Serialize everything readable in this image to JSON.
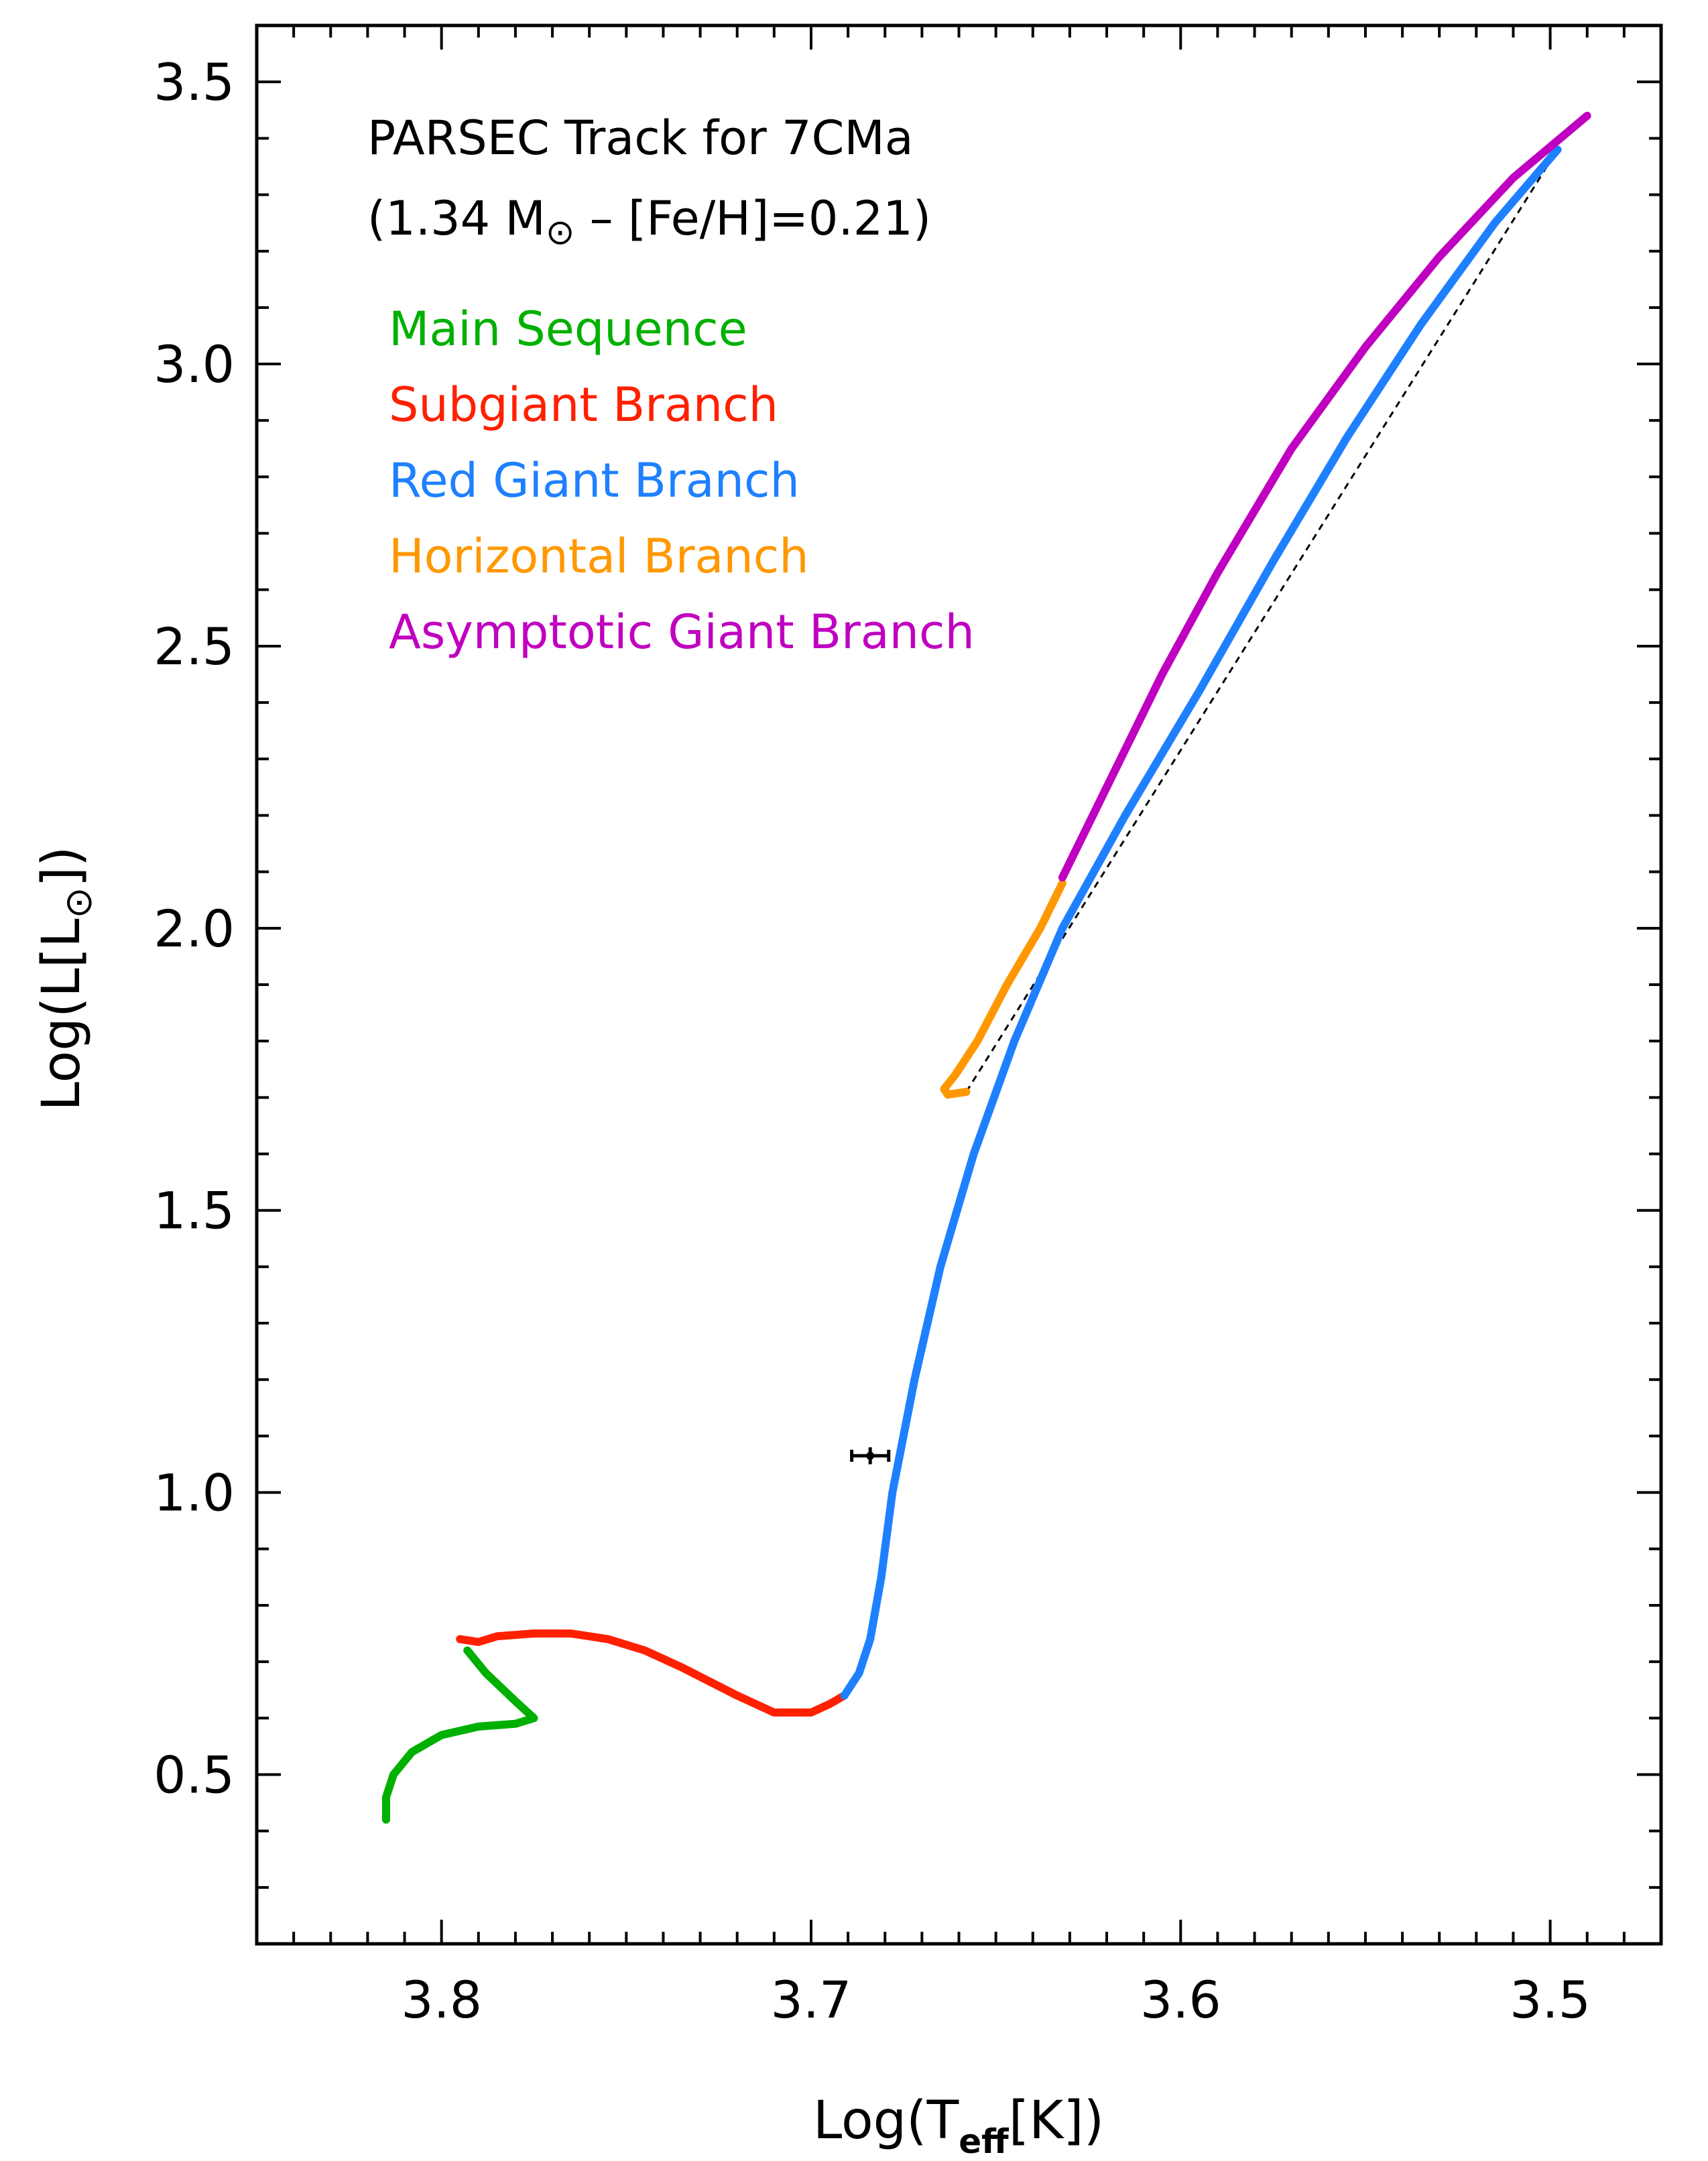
{
  "chart_data": {
    "type": "line",
    "title": "PARSEC Track for 7CMa",
    "subtitle": {
      "prefix": "(1.34 M",
      "sun_symbol": "⊙",
      "suffix": " – [Fe/H]=0.21)"
    },
    "xlabel": {
      "prefix": "Log(T",
      "subscript": "eff",
      "suffix": "[K])"
    },
    "ylabel": {
      "prefix": "Log(L[L",
      "sun_symbol": "⊙",
      "suffix": "])"
    },
    "xlim": [
      3.85,
      3.47
    ],
    "ylim": [
      0.2,
      3.6
    ],
    "x_reversed": true,
    "xticks": [
      {
        "value": 3.8,
        "label": "3.8"
      },
      {
        "value": 3.7,
        "label": "3.7"
      },
      {
        "value": 3.6,
        "label": "3.6"
      },
      {
        "value": 3.5,
        "label": "3.5"
      }
    ],
    "yticks": [
      {
        "value": 0.5,
        "label": "0.5"
      },
      {
        "value": 1.0,
        "label": "1.0"
      },
      {
        "value": 1.5,
        "label": "1.5"
      },
      {
        "value": 2.0,
        "label": "2.0"
      },
      {
        "value": 2.5,
        "label": "2.5"
      },
      {
        "value": 3.0,
        "label": "3.0"
      },
      {
        "value": 3.5,
        "label": "3.5"
      }
    ],
    "legend_position": "top-left",
    "series": [
      {
        "name": "Main Sequence",
        "color": "#00b000",
        "points": [
          [
            3.815,
            0.42
          ],
          [
            3.815,
            0.46
          ],
          [
            3.813,
            0.5
          ],
          [
            3.808,
            0.54
          ],
          [
            3.8,
            0.57
          ],
          [
            3.79,
            0.585
          ],
          [
            3.78,
            0.59
          ],
          [
            3.775,
            0.6
          ],
          [
            3.78,
            0.63
          ],
          [
            3.788,
            0.68
          ],
          [
            3.793,
            0.72
          ]
        ]
      },
      {
        "name": "Subgiant Branch",
        "color": "#ff2000",
        "points": [
          [
            3.795,
            0.74
          ],
          [
            3.79,
            0.735
          ],
          [
            3.785,
            0.745
          ],
          [
            3.775,
            0.75
          ],
          [
            3.765,
            0.75
          ],
          [
            3.755,
            0.74
          ],
          [
            3.745,
            0.72
          ],
          [
            3.735,
            0.69
          ],
          [
            3.72,
            0.64
          ],
          [
            3.71,
            0.61
          ],
          [
            3.7,
            0.61
          ],
          [
            3.695,
            0.625
          ],
          [
            3.691,
            0.64
          ]
        ]
      },
      {
        "name": "Red Giant Branch",
        "color": "#1e80ff",
        "points": [
          [
            3.691,
            0.64
          ],
          [
            3.687,
            0.68
          ],
          [
            3.684,
            0.74
          ],
          [
            3.681,
            0.85
          ],
          [
            3.678,
            1.0
          ],
          [
            3.672,
            1.2
          ],
          [
            3.665,
            1.4
          ],
          [
            3.656,
            1.6
          ],
          [
            3.645,
            1.8
          ],
          [
            3.632,
            2.0
          ],
          [
            3.615,
            2.2
          ],
          [
            3.595,
            2.42
          ],
          [
            3.575,
            2.65
          ],
          [
            3.555,
            2.87
          ],
          [
            3.535,
            3.07
          ],
          [
            3.515,
            3.25
          ],
          [
            3.498,
            3.38
          ]
        ]
      },
      {
        "name": "Horizontal Branch",
        "color": "#ff9800",
        "points": [
          [
            3.658,
            1.71
          ],
          [
            3.663,
            1.705
          ],
          [
            3.664,
            1.715
          ],
          [
            3.661,
            1.74
          ],
          [
            3.655,
            1.8
          ],
          [
            3.647,
            1.9
          ],
          [
            3.638,
            2.0
          ],
          [
            3.632,
            2.08
          ]
        ]
      },
      {
        "name": "Asymptotic Giant Branch",
        "color": "#c000c0",
        "points": [
          [
            3.632,
            2.09
          ],
          [
            3.62,
            2.25
          ],
          [
            3.605,
            2.45
          ],
          [
            3.59,
            2.63
          ],
          [
            3.57,
            2.85
          ],
          [
            3.55,
            3.03
          ],
          [
            3.53,
            3.19
          ],
          [
            3.51,
            3.33
          ],
          [
            3.49,
            3.44
          ]
        ]
      }
    ],
    "connector": {
      "style": "dashed",
      "color": "#000000",
      "points": [
        [
          3.658,
          1.71
        ],
        [
          3.498,
          3.38
        ]
      ]
    },
    "observation": {
      "x": 3.684,
      "y": 1.065,
      "x_error": 0.005,
      "y_error": 0.015
    }
  }
}
